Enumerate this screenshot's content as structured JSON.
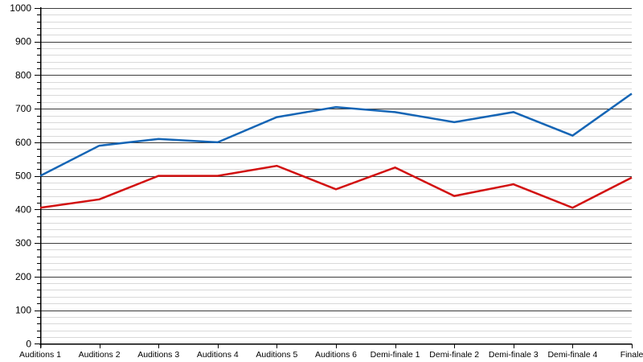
{
  "chart_data": {
    "type": "line",
    "title": "",
    "categories": [
      "Auditions 1",
      "Auditions 2",
      "Auditions 3",
      "Auditions 4",
      "Auditions 5",
      "Auditions 6",
      "Demi-finale 1",
      "Demi-finale 2",
      "Demi-finale 3",
      "Demi-finale 4",
      "Finale"
    ],
    "series": [
      {
        "name": "series-1-blue",
        "color": "#1565b5",
        "values": [
          500,
          590,
          610,
          600,
          675,
          705,
          690,
          660,
          690,
          620,
          745
        ]
      },
      {
        "name": "series-2-red",
        "color": "#d21111",
        "values": [
          405,
          430,
          500,
          500,
          530,
          460,
          525,
          440,
          475,
          405,
          495
        ]
      }
    ],
    "xlabel": "",
    "ylabel": "",
    "ylim": [
      0,
      1000
    ],
    "y_major_step": 100,
    "y_minor_step": 20,
    "y_tick_labels": [
      "0",
      "100",
      "200",
      "300",
      "400",
      "500",
      "600",
      "700",
      "800",
      "900",
      "1000"
    ],
    "grid": "major+minor",
    "legend": "none",
    "background": "#ffffff",
    "axis_color": "#000000",
    "major_grid_color": "#3c3c3c",
    "minor_grid_color": "#d9d9d9",
    "line_width": 2.5
  }
}
